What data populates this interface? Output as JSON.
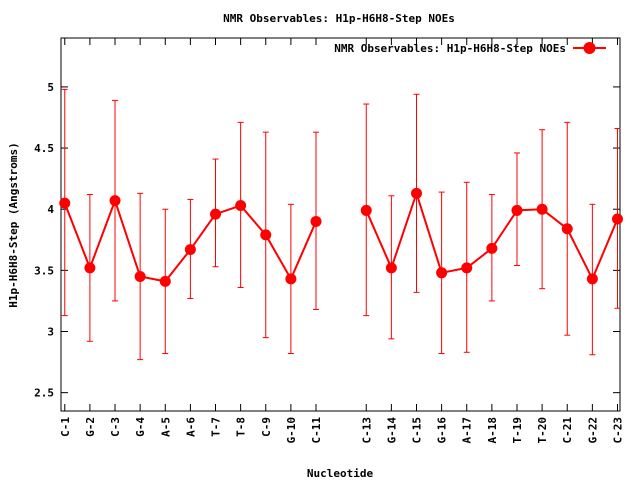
{
  "chart_data": {
    "type": "line",
    "title": "NMR Observables: H1p-H6H8-Step NOEs",
    "xlabel": "Nucleotide",
    "ylabel": "H1p-H6H8-Step (Angstroms)",
    "ylim": [
      2.35,
      5.4
    ],
    "yticks": [
      "2.5",
      "3",
      "3.5",
      "4",
      "4.5",
      "5"
    ],
    "ytick_values": [
      2.5,
      3,
      3.5,
      4,
      4.5,
      5
    ],
    "grid": false,
    "legend_position": "top-right",
    "series": [
      {
        "name": "NMR Observables: H1p-H6H8-Step NOEs",
        "color": "#ff0000",
        "marker": "circle",
        "points": [
          {
            "x": 1,
            "label": "C-1",
            "y": 4.05,
            "low": 3.13,
            "high": 4.98
          },
          {
            "x": 2,
            "label": "G-2",
            "y": 3.52,
            "low": 2.92,
            "high": 4.12
          },
          {
            "x": 3,
            "label": "C-3",
            "y": 4.07,
            "low": 3.25,
            "high": 4.89
          },
          {
            "x": 4,
            "label": "G-4",
            "y": 3.45,
            "low": 2.77,
            "high": 4.13
          },
          {
            "x": 5,
            "label": "A-5",
            "y": 3.41,
            "low": 2.82,
            "high": 4.0
          },
          {
            "x": 6,
            "label": "A-6",
            "y": 3.67,
            "low": 3.27,
            "high": 4.08
          },
          {
            "x": 7,
            "label": "T-7",
            "y": 3.96,
            "low": 3.53,
            "high": 4.41
          },
          {
            "x": 8,
            "label": "T-8",
            "y": 4.03,
            "low": 3.36,
            "high": 4.71
          },
          {
            "x": 9,
            "label": "C-9",
            "y": 3.79,
            "low": 2.95,
            "high": 4.63
          },
          {
            "x": 10,
            "label": "G-10",
            "y": 3.43,
            "low": 2.82,
            "high": 4.04
          },
          {
            "x": 11,
            "label": "C-11",
            "y": 3.9,
            "low": 3.18,
            "high": 4.63
          },
          {
            "x": 13,
            "label": "C-13",
            "y": 3.99,
            "low": 3.13,
            "high": 4.86
          },
          {
            "x": 14,
            "label": "G-14",
            "y": 3.52,
            "low": 2.94,
            "high": 4.11
          },
          {
            "x": 15,
            "label": "C-15",
            "y": 4.13,
            "low": 3.32,
            "high": 4.94
          },
          {
            "x": 16,
            "label": "G-16",
            "y": 3.48,
            "low": 2.82,
            "high": 4.14
          },
          {
            "x": 17,
            "label": "A-17",
            "y": 3.52,
            "low": 2.83,
            "high": 4.22
          },
          {
            "x": 18,
            "label": "A-18",
            "y": 3.68,
            "low": 3.25,
            "high": 4.12
          },
          {
            "x": 19,
            "label": "T-19",
            "y": 3.99,
            "low": 3.54,
            "high": 4.46
          },
          {
            "x": 20,
            "label": "T-20",
            "y": 4.0,
            "low": 3.35,
            "high": 4.65
          },
          {
            "x": 21,
            "label": "C-21",
            "y": 3.84,
            "low": 2.97,
            "high": 4.71
          },
          {
            "x": 22,
            "label": "G-22",
            "y": 3.43,
            "low": 2.81,
            "high": 4.04
          },
          {
            "x": 23,
            "label": "C-23",
            "y": 3.92,
            "low": 3.19,
            "high": 4.66
          }
        ]
      }
    ],
    "xlim": [
      0.85,
      23.1
    ]
  }
}
